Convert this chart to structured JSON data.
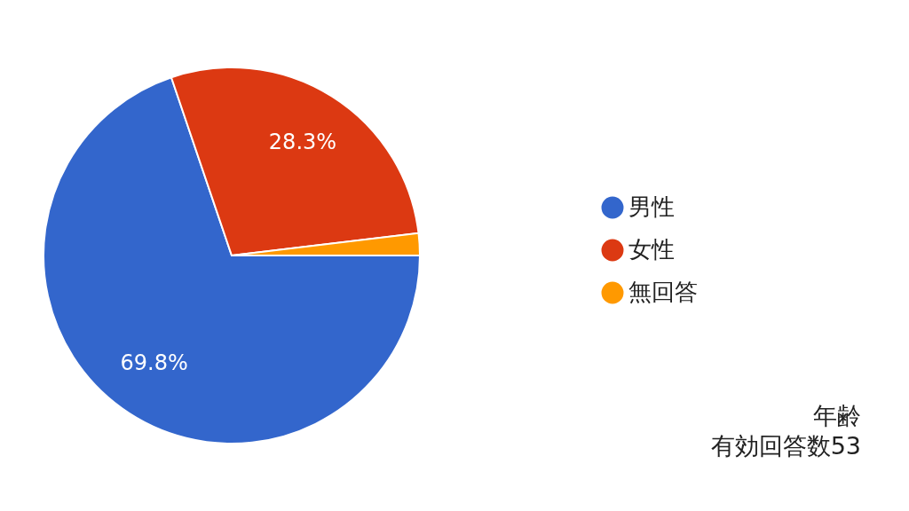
{
  "chart_data": {
    "type": "pie",
    "categories": [
      "男性",
      "女性",
      "無回答"
    ],
    "values": [
      69.8,
      28.3,
      1.9
    ],
    "colors": [
      "#3366cc",
      "#dc3912",
      "#ff9900"
    ],
    "value_labels": [
      "69.8%",
      "28.3%",
      null
    ],
    "legend": "right",
    "annotations": [
      "年齢",
      "有効回答数53"
    ]
  }
}
